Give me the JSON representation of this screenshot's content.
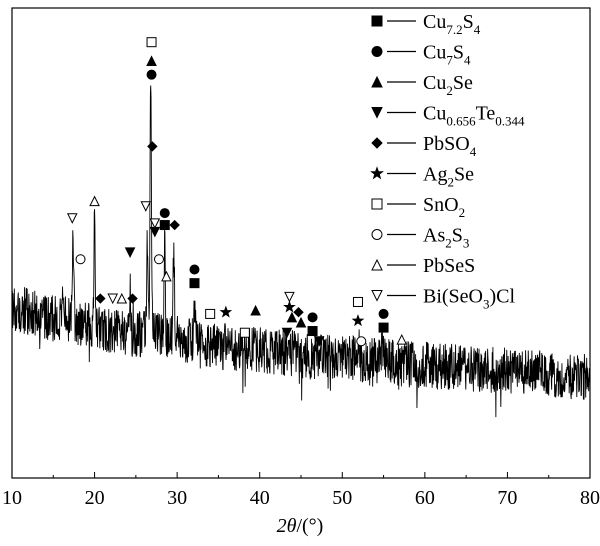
{
  "chart_data": {
    "type": "line",
    "xlabel_italic": "2θ",
    "xlabel_rest": "/(°)",
    "ylabel": "",
    "xlim": [
      10,
      80
    ],
    "x_ticks": [
      10,
      20,
      30,
      40,
      50,
      60,
      70,
      80
    ],
    "x_tick_labels": [
      "10",
      "20",
      "30",
      "40",
      "50",
      "60",
      "70",
      "80"
    ],
    "y_ticks_shown": false,
    "grid": false,
    "legend_placement": "top-right",
    "series": [
      {
        "trace_points_x": [
          10,
          13,
          16,
          17.2,
          18,
          19,
          20,
          21,
          22,
          23,
          24,
          25,
          26,
          26.8,
          27.5,
          28.5,
          29.5,
          31,
          32,
          33,
          34,
          36,
          38,
          40,
          42,
          44,
          46,
          48,
          50,
          52,
          54,
          55,
          57,
          60,
          65,
          70,
          75,
          80
        ],
        "trace_points_y": [
          0.0,
          -0.08,
          -0.16,
          -0.16,
          -0.2,
          -0.21,
          -0.24,
          -0.28,
          -0.28,
          -0.3,
          -0.3,
          -0.32,
          -0.31,
          -0.3,
          -0.33,
          -0.34,
          -0.35,
          -0.38,
          -0.4,
          -0.42,
          -0.44,
          -0.47,
          -0.48,
          -0.5,
          -0.52,
          -0.54,
          -0.57,
          -0.58,
          -0.59,
          -0.61,
          -0.62,
          -0.62,
          -0.66,
          -0.68,
          -0.71,
          -0.74,
          -0.78,
          -0.82
        ],
        "peaks": [
          {
            "x": 17.4,
            "y": 1.04
          },
          {
            "x": 20.0,
            "y": 1.21
          },
          {
            "x": 24.3,
            "y": 0.52
          },
          {
            "x": 26.4,
            "y": 1.15
          },
          {
            "x": 26.8,
            "y": 3.08
          },
          {
            "x": 28.5,
            "y": 1.05
          },
          {
            "x": 29.6,
            "y": 1.02
          },
          {
            "x": 32.1,
            "y": 0.4
          },
          {
            "x": 43.6,
            "y": 0.12
          },
          {
            "x": 52.0,
            "y": 0.18
          },
          {
            "x": 54.8,
            "y": 0.23
          }
        ]
      }
    ],
    "markers": [
      {
        "phase": 0,
        "x": 28.5,
        "y": 0.96
      },
      {
        "phase": 0,
        "x": 32.1,
        "y": 0.28
      },
      {
        "phase": 0,
        "x": 46.4,
        "y": -0.28
      },
      {
        "phase": 0,
        "x": 55.0,
        "y": -0.24
      },
      {
        "phase": 1,
        "x": 26.9,
        "y": 2.72
      },
      {
        "phase": 1,
        "x": 28.5,
        "y": 1.1
      },
      {
        "phase": 1,
        "x": 32.1,
        "y": 0.44
      },
      {
        "phase": 1,
        "x": 46.4,
        "y": -0.12
      },
      {
        "phase": 1,
        "x": 55.0,
        "y": -0.08
      },
      {
        "phase": 2,
        "x": 26.9,
        "y": 2.88
      },
      {
        "phase": 2,
        "x": 39.5,
        "y": -0.04
      },
      {
        "phase": 2,
        "x": 43.9,
        "y": -0.12
      },
      {
        "phase": 2,
        "x": 45.0,
        "y": -0.18
      },
      {
        "phase": 3,
        "x": 24.3,
        "y": 0.64
      },
      {
        "phase": 3,
        "x": 27.3,
        "y": 0.88
      },
      {
        "phase": 3,
        "x": 43.3,
        "y": -0.3
      },
      {
        "phase": 3,
        "x": 47.2,
        "y": -0.4
      },
      {
        "phase": 4,
        "x": 20.7,
        "y": 0.1
      },
      {
        "phase": 4,
        "x": 24.6,
        "y": 0.1
      },
      {
        "phase": 4,
        "x": 27.0,
        "y": 1.88
      },
      {
        "phase": 4,
        "x": 29.7,
        "y": 0.96
      },
      {
        "phase": 4,
        "x": 44.7,
        "y": -0.06
      },
      {
        "phase": 5,
        "x": 35.9,
        "y": -0.06
      },
      {
        "phase": 5,
        "x": 43.6,
        "y": 0.0
      },
      {
        "phase": 5,
        "x": 51.9,
        "y": -0.16
      },
      {
        "phase": 6,
        "x": 26.9,
        "y": 3.1
      },
      {
        "phase": 6,
        "x": 34.0,
        "y": -0.08
      },
      {
        "phase": 6,
        "x": 38.2,
        "y": -0.3
      },
      {
        "phase": 6,
        "x": 51.9,
        "y": 0.06
      },
      {
        "phase": 7,
        "x": 18.3,
        "y": 0.56
      },
      {
        "phase": 7,
        "x": 27.8,
        "y": 0.56
      },
      {
        "phase": 7,
        "x": 52.3,
        "y": -0.4
      },
      {
        "phase": 8,
        "x": 20.0,
        "y": 1.24
      },
      {
        "phase": 8,
        "x": 23.3,
        "y": 0.1
      },
      {
        "phase": 8,
        "x": 28.7,
        "y": 0.36
      },
      {
        "phase": 8,
        "x": 57.2,
        "y": -0.38
      },
      {
        "phase": 9,
        "x": 17.3,
        "y": 1.04
      },
      {
        "phase": 9,
        "x": 22.2,
        "y": 0.1
      },
      {
        "phase": 9,
        "x": 26.2,
        "y": 1.18
      },
      {
        "phase": 9,
        "x": 27.3,
        "y": 0.98
      },
      {
        "phase": 9,
        "x": 43.6,
        "y": 0.12
      }
    ],
    "legend": [
      {
        "marker": "square-filled",
        "base": "Cu",
        "parts": [
          [
            "7.2",
            "sub"
          ],
          [
            "S",
            ""
          ],
          [
            "4",
            "sub"
          ]
        ]
      },
      {
        "marker": "circle-filled",
        "base": "Cu",
        "parts": [
          [
            "7",
            "sub"
          ],
          [
            "S",
            ""
          ],
          [
            "4",
            "sub"
          ]
        ]
      },
      {
        "marker": "triangle-up-filled",
        "base": "Cu",
        "parts": [
          [
            "2",
            "sub"
          ],
          [
            "Se",
            ""
          ]
        ]
      },
      {
        "marker": "triangle-down-filled",
        "base": "Cu",
        "parts": [
          [
            "0.656",
            "sub"
          ],
          [
            "Te",
            ""
          ],
          [
            "0.344",
            "sub"
          ]
        ]
      },
      {
        "marker": "diamond-filled",
        "base": "PbSO",
        "parts": [
          [
            "4",
            "sub"
          ]
        ]
      },
      {
        "marker": "star-filled",
        "base": "Ag",
        "parts": [
          [
            "2",
            "sub"
          ],
          [
            "Se",
            ""
          ]
        ]
      },
      {
        "marker": "square-open",
        "base": "SnO",
        "parts": [
          [
            "2",
            "sub"
          ]
        ]
      },
      {
        "marker": "circle-open",
        "base": "As",
        "parts": [
          [
            "2",
            "sub"
          ],
          [
            "S",
            ""
          ],
          [
            "3",
            "sub"
          ]
        ]
      },
      {
        "marker": "triangle-up-open",
        "base": "PbSeS",
        "parts": []
      },
      {
        "marker": "triangle-down-open",
        "base": "Bi(SeO",
        "parts": [
          [
            "3",
            "sub"
          ],
          [
            ")Cl",
            ""
          ]
        ]
      }
    ],
    "colors": {
      "line": "#000000",
      "background": "#ffffff"
    }
  }
}
